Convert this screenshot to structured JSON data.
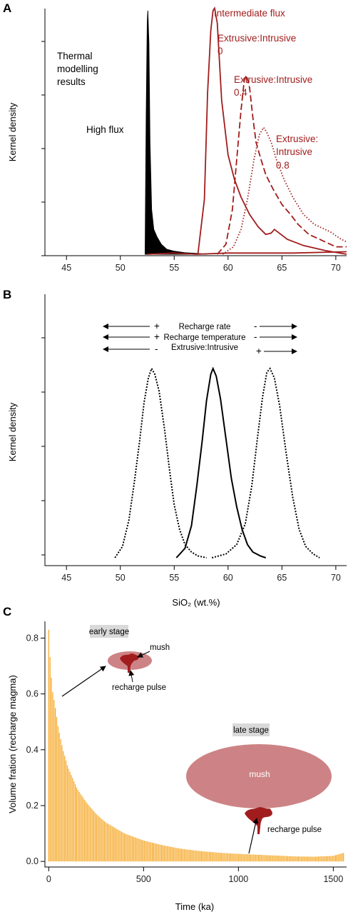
{
  "colors": {
    "red": "#a11d1d",
    "black": "#000000",
    "orange": "#f5a623",
    "mush_fill": "#cd8385",
    "stage_box": "#d9d9d9"
  },
  "panels": {
    "a": {
      "letter": "A",
      "ylabel": "Kernel density"
    },
    "b": {
      "letter": "B",
      "ylabel": "Kernel density",
      "xlabel": "SiO₂ (wt.%)"
    },
    "c": {
      "letter": "C",
      "ylabel": "Volume fration (recharge magma)",
      "xlabel": "Time (ka)"
    }
  },
  "annotations": {
    "a": {
      "thermal_line1": "Thermal",
      "thermal_line2": "modelling",
      "thermal_line3": "results",
      "high_flux": "High flux",
      "intermediate_flux": "Intermediate flux",
      "ei0_line1": "Extrusive:Intrusive",
      "ei0_line2": "0",
      "ei04_line1": "Extrusive:Intrusive",
      "ei04_line2": "0.4",
      "ei08_line1": "Extrusive:",
      "ei08_line2": "Intrusive",
      "ei08_line3": "0.8"
    },
    "b": {
      "row1_left": "+",
      "row1_label": "Recharge rate",
      "row1_right": "-",
      "row2_left": "+",
      "row2_label": "Recharge temperature",
      "row2_right": "-",
      "row3_left": "-",
      "row3_label": "Extrusive:Intrusive",
      "row3_right": "+"
    },
    "c": {
      "early_stage": "early stage",
      "mush_small": "mush",
      "recharge_pulse_1": "recharge pulse",
      "late_stage": "late stage",
      "mush_large": "mush",
      "recharge_pulse_2": "recharge pulse"
    }
  },
  "chart_data": [
    {
      "panel": "A",
      "type": "area",
      "xlim": [
        43,
        71
      ],
      "xticks": [
        45,
        50,
        55,
        60,
        65,
        70
      ],
      "ylim": [
        0,
        1
      ],
      "yticks_labeled": false,
      "series": [
        {
          "name": "High flux",
          "style": "filled-black",
          "x": [
            52.3,
            52.4,
            52.5,
            52.55,
            52.65,
            52.75,
            52.9,
            53.1,
            53.4,
            53.8,
            54.3,
            55.0,
            56.0,
            57.5,
            58.0
          ],
          "y": [
            0.0,
            0.55,
            0.93,
            0.98,
            0.85,
            0.45,
            0.18,
            0.1,
            0.07,
            0.04,
            0.02,
            0.012,
            0.006,
            0.002,
            0.0
          ]
        },
        {
          "name": "Intermediate flux",
          "style": "solid",
          "x": [
            57.2,
            57.8,
            58.1,
            58.4,
            58.6,
            58.75,
            59.0,
            59.4,
            60.0,
            60.6,
            61.2,
            62.0,
            62.8,
            63.5,
            64.0,
            64.3,
            64.6,
            65.5,
            67.0,
            69.0,
            71.0
          ],
          "y": [
            0.0,
            0.22,
            0.65,
            0.9,
            0.98,
            0.99,
            0.93,
            0.62,
            0.4,
            0.3,
            0.23,
            0.16,
            0.11,
            0.08,
            0.085,
            0.1,
            0.09,
            0.06,
            0.035,
            0.015,
            0.0
          ]
        },
        {
          "name": "Extrusive:Intrusive 0",
          "style": "solid",
          "x": [
            52.5,
            55.0,
            57.0,
            60.0,
            63.0,
            66.0,
            71.0
          ],
          "y": [
            0.0,
            0.005,
            0.0,
            0.005,
            0.005,
            0.005,
            0.01
          ]
        },
        {
          "name": "Extrusive:Intrusive 0.4",
          "style": "dashed",
          "x": [
            59.0,
            59.8,
            60.4,
            60.8,
            61.2,
            61.5,
            61.7,
            62.0,
            62.3,
            62.6,
            63.0,
            63.5,
            64.2,
            65.0,
            65.8,
            66.5,
            67.5,
            69.0,
            70.0,
            71.0
          ],
          "y": [
            0.0,
            0.04,
            0.18,
            0.38,
            0.58,
            0.7,
            0.72,
            0.67,
            0.55,
            0.45,
            0.39,
            0.32,
            0.26,
            0.2,
            0.16,
            0.12,
            0.08,
            0.05,
            0.03,
            0.03
          ]
        },
        {
          "name": "Extrusive:Intrusive 0.8",
          "style": "dotted",
          "x": [
            59.5,
            60.5,
            61.2,
            61.8,
            62.4,
            62.9,
            63.3,
            63.6,
            64.0,
            64.5,
            65.2,
            66.0,
            67.0,
            68.0,
            69.5,
            70.5,
            71.0
          ],
          "y": [
            0.0,
            0.03,
            0.1,
            0.22,
            0.38,
            0.48,
            0.51,
            0.49,
            0.45,
            0.38,
            0.3,
            0.23,
            0.16,
            0.12,
            0.09,
            0.06,
            0.05
          ]
        }
      ]
    },
    {
      "panel": "B",
      "type": "line",
      "xlim": [
        43,
        71
      ],
      "xticks": [
        45,
        50,
        55,
        60,
        65,
        70
      ],
      "xlabel": "SiO₂ (wt.%)",
      "ylim": [
        0,
        1
      ],
      "yticks_labeled": false,
      "series": [
        {
          "style": "dotted",
          "x": [
            49.5,
            50.2,
            50.8,
            51.3,
            51.8,
            52.2,
            52.6,
            52.9,
            53.2,
            53.6,
            54.1,
            54.6,
            55.0,
            55.5,
            56.0,
            56.6,
            57.2,
            58.0
          ],
          "y": [
            0.0,
            0.06,
            0.2,
            0.4,
            0.62,
            0.82,
            0.95,
            1.0,
            0.97,
            0.88,
            0.68,
            0.45,
            0.28,
            0.15,
            0.07,
            0.03,
            0.01,
            0.0
          ]
        },
        {
          "style": "solid",
          "x": [
            55.2,
            56.0,
            56.6,
            57.1,
            57.6,
            58.0,
            58.4,
            58.6,
            58.9,
            59.3,
            59.8,
            60.3,
            60.8,
            61.3,
            61.8,
            62.3,
            63.0,
            63.5
          ],
          "y": [
            0.0,
            0.05,
            0.17,
            0.38,
            0.62,
            0.83,
            0.97,
            1.0,
            0.96,
            0.84,
            0.63,
            0.42,
            0.27,
            0.15,
            0.07,
            0.03,
            0.01,
            0.0
          ]
        },
        {
          "style": "dotted",
          "x": [
            58.5,
            59.8,
            60.8,
            61.6,
            62.2,
            62.7,
            63.2,
            63.6,
            63.9,
            64.3,
            64.8,
            65.4,
            66.0,
            66.6,
            67.2,
            67.9,
            68.5
          ],
          "y": [
            0.0,
            0.02,
            0.07,
            0.18,
            0.38,
            0.62,
            0.85,
            0.98,
            1.0,
            0.95,
            0.8,
            0.55,
            0.32,
            0.15,
            0.06,
            0.02,
            0.0
          ]
        }
      ]
    },
    {
      "panel": "C",
      "type": "bar",
      "xlim": [
        -20,
        1570
      ],
      "xticks": [
        0,
        500,
        1000,
        1500
      ],
      "xlabel": "Time (ka)",
      "ylim": [
        -0.02,
        0.86
      ],
      "yticks": [
        0.0,
        0.2,
        0.4,
        0.6,
        0.8
      ],
      "ylabel": "Volume fration (recharge magma)",
      "series": [
        {
          "style": "orange-spikes",
          "x": [
            0,
            10,
            20,
            35,
            50,
            75,
            100,
            150,
            200,
            250,
            300,
            400,
            500,
            600,
            700,
            800,
            900,
            1000,
            1100,
            1200,
            1300,
            1400,
            1500,
            1550
          ],
          "y": [
            0.83,
            0.69,
            0.61,
            0.55,
            0.48,
            0.4,
            0.34,
            0.26,
            0.21,
            0.17,
            0.14,
            0.1,
            0.075,
            0.058,
            0.045,
            0.037,
            0.031,
            0.027,
            0.024,
            0.021,
            0.018,
            0.017,
            0.02,
            0.03
          ]
        }
      ]
    }
  ]
}
